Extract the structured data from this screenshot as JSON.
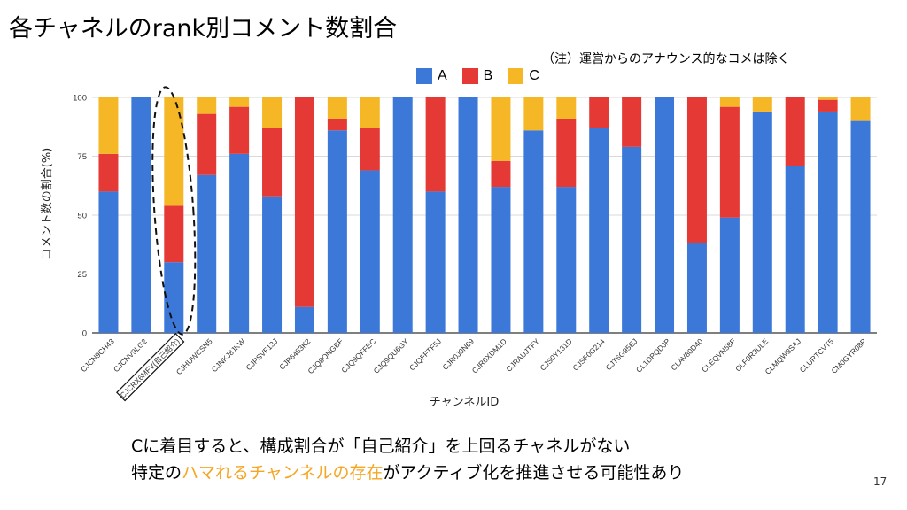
{
  "slide": {
    "title": "各チャネルのrank別コメント数割合",
    "note": "（注）運営からのアナウンス的なコメは除く",
    "page_number": "17",
    "conclusion_line1": "Cに着目すると、構成割合が「自己紹介」を上回るチャネルがない",
    "conclusion_line2_pre": "特定の",
    "conclusion_line2_highlight": "ハマれるチャンネルの存在",
    "conclusion_line2_post": "がアクティブ化を推進させる可能性あり"
  },
  "colors": {
    "A": "#3c78d8",
    "B": "#e53935",
    "C": "#f6b727",
    "highlight_text": "#f5a623"
  },
  "chart_data": {
    "type": "bar",
    "stacked": true,
    "xlabel": "チャンネルID",
    "ylabel": "コメント数の割合(%)",
    "ylim": [
      0,
      100
    ],
    "yticks": [
      0,
      25,
      50,
      75,
      100
    ],
    "grid": true,
    "legend_position": "top",
    "highlighted_category": "CJCRX6MFV(自己紹介)",
    "categories": [
      "CJCN9CH43",
      "CJCNV9LG2",
      "CJCRX6MFV(自己紹介)",
      "CJHUWCSN5",
      "CJNKJ8JKW",
      "CJPSVF13J",
      "CJP6483K2",
      "CJQ8QNGBF",
      "CJQ9QFFEC",
      "CJQ9QU6GY",
      "CJQFFTF5J",
      "CJR0J0N69",
      "CJR0XDM1D",
      "CJRAUJTFY",
      "CJS0Y131D",
      "CJSF0G214",
      "CJT6G95EJ",
      "CL1DPQDJP",
      "CLAV80D40",
      "CLEQVN58F",
      "CLF0R3ULE",
      "CLMQW3SAJ",
      "CLURTCVT5",
      "CM0GYR08P"
    ],
    "series": [
      {
        "name": "A",
        "values": [
          60,
          100,
          30,
          67,
          76,
          58,
          11,
          86,
          69,
          100,
          60,
          100,
          62,
          86,
          62,
          87,
          79,
          100,
          38,
          49,
          94,
          71,
          94,
          90
        ]
      },
      {
        "name": "B",
        "values": [
          16,
          0,
          24,
          26,
          20,
          29,
          89,
          5,
          18,
          0,
          40,
          0,
          11,
          0,
          29,
          13,
          21,
          0,
          62,
          47,
          0,
          29,
          5,
          0
        ]
      },
      {
        "name": "C",
        "values": [
          24,
          0,
          46,
          7,
          4,
          13,
          0,
          9,
          13,
          0,
          0,
          0,
          27,
          14,
          9,
          0,
          0,
          0,
          0,
          4,
          6,
          0,
          1,
          10
        ]
      }
    ]
  }
}
